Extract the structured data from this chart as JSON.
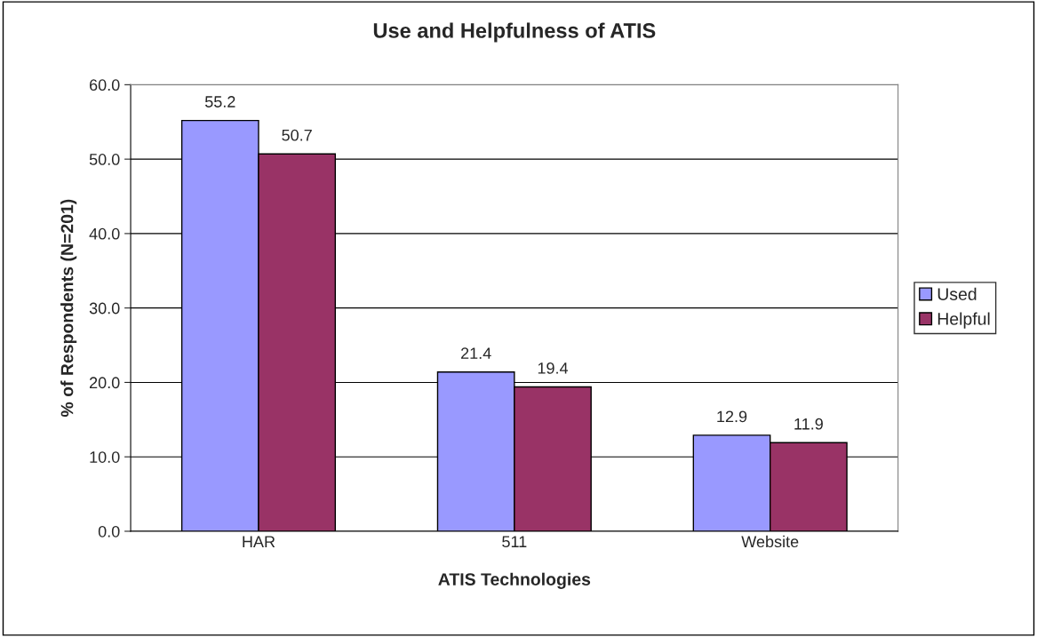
{
  "chart_data": {
    "type": "bar",
    "title": "Use and Helpfulness of ATIS",
    "xlabel": "ATIS Technologies",
    "ylabel": "% of Respondents (N=201)",
    "categories": [
      "HAR",
      "511",
      "Website"
    ],
    "series": [
      {
        "name": "Used",
        "color": "#9999ff",
        "values": [
          55.2,
          21.4,
          12.9
        ]
      },
      {
        "name": "Helpful",
        "color": "#993366",
        "values": [
          50.7,
          19.4,
          11.9
        ]
      }
    ],
    "ylim": [
      0,
      60
    ],
    "yticks": [
      {
        "value": 0,
        "label": "0.0"
      },
      {
        "value": 10,
        "label": "10.0"
      },
      {
        "value": 20,
        "label": "20.0"
      },
      {
        "value": 30,
        "label": "30.0"
      },
      {
        "value": 40,
        "label": "40.0"
      },
      {
        "value": 50,
        "label": "50.0"
      },
      {
        "value": 60,
        "label": "60.0"
      }
    ],
    "grid": "y",
    "legend": "right",
    "data_labels": true
  }
}
